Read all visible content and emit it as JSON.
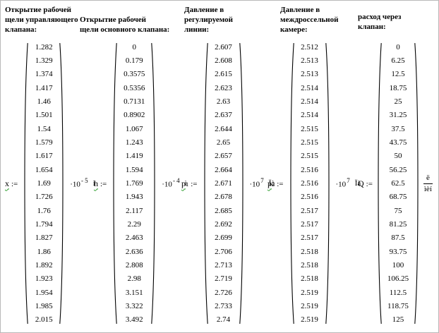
{
  "headers": [
    {
      "lines": [
        "Открытие рабочей",
        "щели управляющего",
        "клапана:"
      ]
    },
    {
      "lines": [
        "Открытие рабочей",
        "щели основного клапана:"
      ]
    },
    {
      "lines": [
        "Давление в",
        "регулируемой",
        "линии:"
      ]
    },
    {
      "lines": [
        "Давление в",
        "междроссельной",
        "камере:"
      ]
    },
    {
      "lines": [
        "расход через",
        "клапан:"
      ]
    }
  ],
  "vectors": [
    {
      "var": "x",
      "sub": "",
      "assign": ":=",
      "multiplier_base": "·10",
      "multiplier_exp": "- 5",
      "unit": "ì",
      "values": [
        1.282,
        1.329,
        1.374,
        1.417,
        1.46,
        1.501,
        1.54,
        1.579,
        1.617,
        1.654,
        1.69,
        1.726,
        1.76,
        1.794,
        1.827,
        1.86,
        1.892,
        1.923,
        1.954,
        1.985,
        2.015
      ]
    },
    {
      "var": "h",
      "sub": "",
      "assign": ":=",
      "multiplier_base": "·10",
      "multiplier_exp": "- 4",
      "unit": "ì",
      "values": [
        0,
        0.179,
        0.3575,
        0.5356,
        0.7131,
        0.8902,
        1.067,
        1.243,
        1.419,
        1.594,
        1.769,
        1.943,
        2.117,
        2.29,
        2.463,
        2.636,
        2.808,
        2.98,
        3.151,
        3.322,
        3.492
      ]
    },
    {
      "var": "p",
      "sub": "1",
      "assign": ":=",
      "multiplier_base": "·10",
      "multiplier_exp": "7",
      "unit": "Ïà",
      "values": [
        2.607,
        2.608,
        2.615,
        2.623,
        2.63,
        2.637,
        2.644,
        2.65,
        2.657,
        2.664,
        2.671,
        2.678,
        2.685,
        2.692,
        2.699,
        2.706,
        2.713,
        2.719,
        2.726,
        2.733,
        2.74
      ]
    },
    {
      "var": "p",
      "sub": "2",
      "assign": ":=",
      "multiplier_base": "·10",
      "multiplier_exp": "7",
      "unit": "Ïà",
      "values": [
        2.512,
        2.513,
        2.513,
        2.514,
        2.514,
        2.514,
        2.515,
        2.515,
        2.515,
        2.516,
        2.516,
        2.516,
        2.517,
        2.517,
        2.517,
        2.518,
        2.518,
        2.518,
        2.519,
        2.519,
        2.519
      ]
    },
    {
      "var": "Q",
      "sub": "",
      "assign": ":=",
      "unit_num": "ë",
      "unit_den": "ìèí",
      "values": [
        0,
        6.25,
        12.5,
        18.75,
        25,
        31.25,
        37.5,
        43.75,
        50,
        56.25,
        62.5,
        68.75,
        75,
        81.25,
        87.5,
        93.75,
        100,
        106.25,
        112.5,
        118.75,
        125
      ]
    }
  ]
}
